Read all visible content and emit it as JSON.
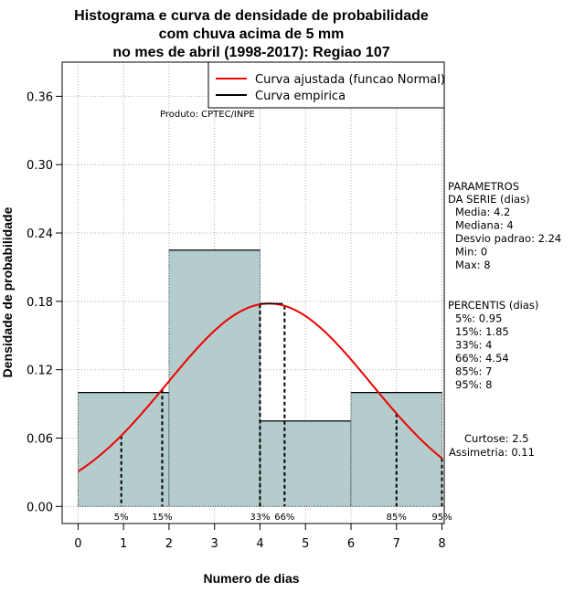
{
  "chart_data": {
    "type": "bar",
    "title_lines": [
      "Histograma e curva de densidade de probabilidade",
      "com chuva acima de 5 mm",
      "no mes de abril (1998-2017): Regiao 107"
    ],
    "xlabel": "Numero de dias",
    "ylabel": "Densidade de probabilidade",
    "xlim": [
      -0.35,
      8.05
    ],
    "ylim": [
      -0.015,
      0.39
    ],
    "x_ticks": [
      "0",
      "1",
      "2",
      "3",
      "4",
      "5",
      "6",
      "7",
      "8"
    ],
    "y_ticks": [
      "0.00",
      "0.06",
      "0.12",
      "0.18",
      "0.24",
      "0.30",
      "0.36"
    ],
    "grid": true,
    "bars": [
      {
        "x0": 0,
        "x1": 2,
        "value": 0.1
      },
      {
        "x0": 2,
        "x1": 4,
        "value": 0.225
      },
      {
        "x0": 4,
        "x1": 6,
        "value": 0.075
      },
      {
        "x0": 6,
        "x1": 8,
        "value": 0.1
      }
    ],
    "bar_color": "#b4cccc",
    "curve_color": "#ee0000",
    "normal_curve": {
      "mean": 4.2,
      "sd": 2.24,
      "x_range": [
        0,
        8
      ]
    },
    "empirical_curve": [
      [
        4,
        0.178
      ],
      [
        4.5,
        0.178
      ]
    ],
    "percentiles": [
      {
        "x": 0.95,
        "label": "5%"
      },
      {
        "x": 1.85,
        "label": "15%"
      },
      {
        "x": 4,
        "label": "33%"
      },
      {
        "x": 4.54,
        "label": "66%"
      },
      {
        "x": 7,
        "label": "85%"
      },
      {
        "x": 8,
        "label": "95%"
      }
    ],
    "legend": {
      "position": "top-right",
      "entries": [
        {
          "label": "Curva ajustada (funcao Normal)",
          "color": "#ee0000"
        },
        {
          "label": "Curva empirica",
          "color": "#000000"
        }
      ]
    },
    "credit": "Produto: CPTEC/INPE",
    "parametros": {
      "header_lines": [
        "PARAMETROS",
        "DA SERIE (dias)"
      ],
      "items": [
        "Media: 4.2",
        "Mediana: 4",
        "Desvio padrao: 2.24",
        "Min: 0",
        "Max: 8"
      ]
    },
    "percentis_box": {
      "header": "PERCENTIS (dias)",
      "items": [
        "5%: 0.95",
        "15%: 1.85",
        "33%: 4",
        "66%: 4.54",
        "85%: 7",
        "95%: 8"
      ]
    },
    "stats": [
      "Curtose: 2.5",
      "Assimetria: 0.11"
    ]
  }
}
